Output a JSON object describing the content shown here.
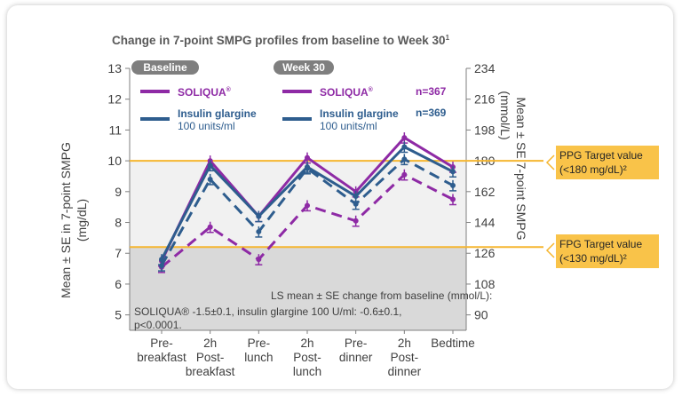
{
  "chart_data": {
    "type": "line",
    "title": "Change in 7-point SMPG profiles from baseline to Week 30",
    "title_superscript": "1",
    "categories": [
      [
        "Pre-",
        "breakfast"
      ],
      [
        "2h",
        "Post-",
        "breakfast"
      ],
      [
        "Pre-",
        "lunch"
      ],
      [
        "2h",
        "Post-",
        "lunch"
      ],
      [
        "Pre-",
        "dinner"
      ],
      [
        "2h",
        "Post-",
        "dinner"
      ],
      [
        "Bedtime"
      ]
    ],
    "ylim": [
      4.5,
      13
    ],
    "yticks": [
      5,
      6,
      7,
      8,
      9,
      10,
      11,
      12,
      13
    ],
    "y2_ticks": [
      90,
      108,
      126,
      144,
      162,
      180,
      198,
      216,
      234
    ],
    "ylabel": [
      "Mean ± SE in 7-point SMPG",
      "(mg/dL)"
    ],
    "y2label": [
      "Mean ± SE 7-point SMPG",
      "(mmol/L)"
    ],
    "legend": {
      "baseline_label": "Baseline",
      "week_label": "Week 30",
      "soliqua_label": "SOLIQUA",
      "soliqua_reg": "®",
      "glargine_label": "Insulin glargine",
      "glargine_sub": "100 units/ml",
      "soliqua_n": "n=367",
      "glargine_n": "n=369"
    },
    "series": [
      {
        "name": "SOLIQUA",
        "period": "Week 30",
        "dashed": false,
        "color": "#8e2aa5",
        "values": [
          6.75,
          10.0,
          8.2,
          10.1,
          9.0,
          10.75,
          9.8
        ]
      },
      {
        "name": "Insulin glargine",
        "period": "Week 30",
        "dashed": false,
        "color": "#2e5d8e",
        "values": [
          6.8,
          9.85,
          8.2,
          9.8,
          8.85,
          10.45,
          9.65
        ]
      },
      {
        "name": "SOLIQUA",
        "period": "Baseline",
        "dashed": true,
        "color": "#8e2aa5",
        "values": [
          6.55,
          7.85,
          6.8,
          8.55,
          8.05,
          9.55,
          8.75
        ]
      },
      {
        "name": "Insulin glargine",
        "period": "Baseline",
        "dashed": true,
        "color": "#2e5d8e",
        "values": [
          6.6,
          9.4,
          7.7,
          9.75,
          8.6,
          10.05,
          9.2
        ]
      }
    ],
    "bands": {
      "ppg_line": 10,
      "fpg_line": 7.2
    },
    "annotation": [
      "LS mean ± SE change from baseline (mmol/L):",
      "SOLIQUA® -1.5±0.1, insulin glargine 100 U/ml: -0.6±0.1,",
      "p<0.0001."
    ],
    "callouts": [
      {
        "lines": [
          "PPG Target value",
          "(<180 mg/dL)²"
        ]
      },
      {
        "lines": [
          "FPG Target value",
          "(<130 mg/dL)²"
        ]
      }
    ],
    "colors": {
      "soliqua": "#8e2aa5",
      "glargine": "#2e5d8e",
      "target_line": "#f5b630",
      "callout_fill": "#f9c349",
      "band_light": "#f1f1f1",
      "band_dark": "#d9d9d9",
      "badge": "#7f7f7f"
    }
  }
}
